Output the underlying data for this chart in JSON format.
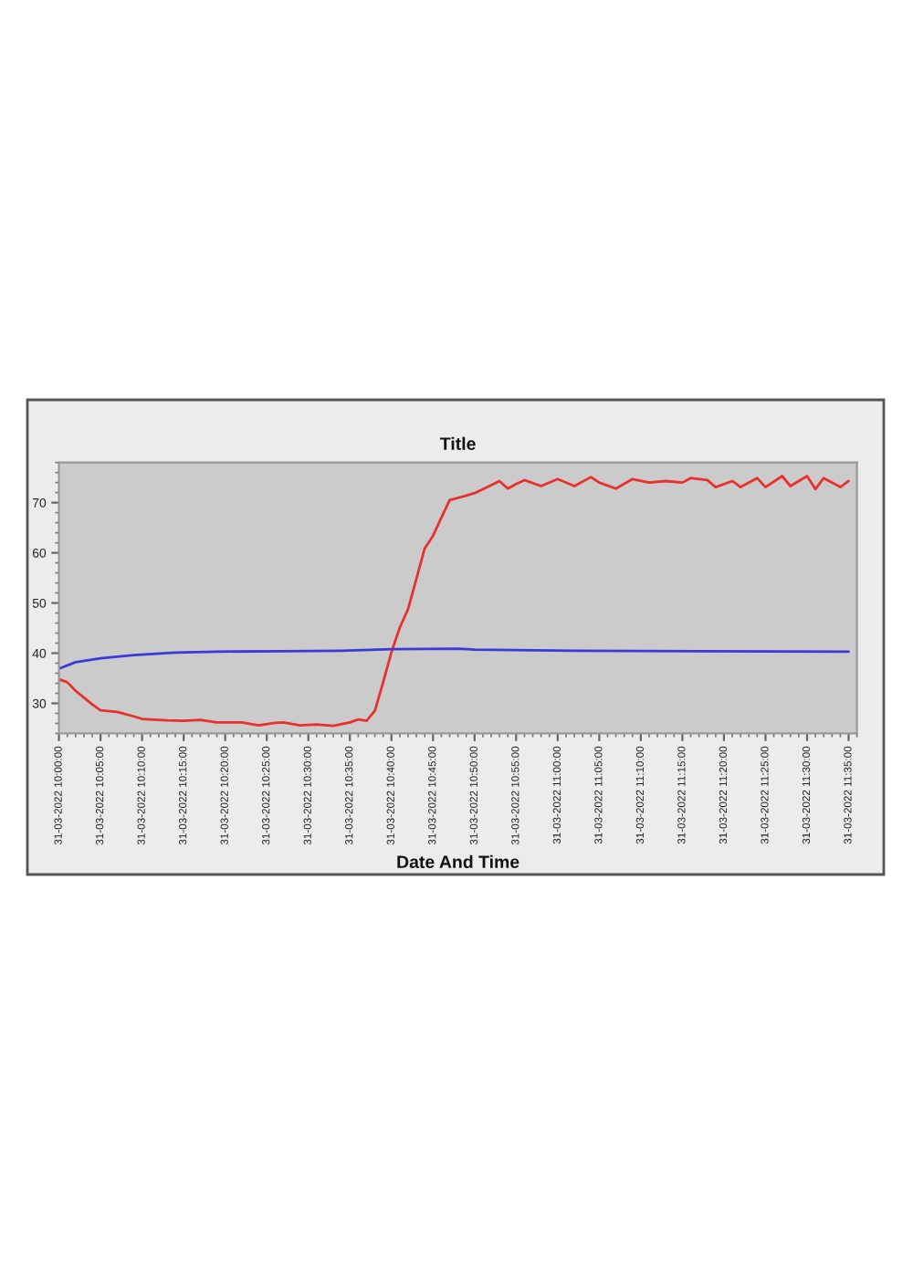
{
  "chart_data": {
    "type": "line",
    "title": "Title",
    "xlabel": "Date And Time",
    "series": [
      {
        "color": "#e8302c",
        "x": [
          "2022-03-31T10:00",
          "2022-03-31T10:01",
          "2022-03-31T10:02",
          "2022-03-31T10:04",
          "2022-03-31T10:05",
          "2022-03-31T10:07",
          "2022-03-31T10:09",
          "2022-03-31T10:10",
          "2022-03-31T10:13",
          "2022-03-31T10:15",
          "2022-03-31T10:17",
          "2022-03-31T10:19",
          "2022-03-31T10:22",
          "2022-03-31T10:24",
          "2022-03-31T10:26",
          "2022-03-31T10:27",
          "2022-03-31T10:29",
          "2022-03-31T10:31",
          "2022-03-31T10:33",
          "2022-03-31T10:35",
          "2022-03-31T10:36",
          "2022-03-31T10:37",
          "2022-03-31T10:38",
          "2022-03-31T10:39",
          "2022-03-31T10:40",
          "2022-03-31T10:41",
          "2022-03-31T10:42",
          "2022-03-31T10:43",
          "2022-03-31T10:44",
          "2022-03-31T10:45",
          "2022-03-31T10:46",
          "2022-03-31T10:47",
          "2022-03-31T10:49",
          "2022-03-31T10:50",
          "2022-03-31T10:52",
          "2022-03-31T10:53",
          "2022-03-31T10:54",
          "2022-03-31T10:55",
          "2022-03-31T10:56",
          "2022-03-31T10:58",
          "2022-03-31T11:00",
          "2022-03-31T11:02",
          "2022-03-31T11:04",
          "2022-03-31T11:05",
          "2022-03-31T11:07",
          "2022-03-31T11:09",
          "2022-03-31T11:11",
          "2022-03-31T11:13",
          "2022-03-31T11:15",
          "2022-03-31T11:16",
          "2022-03-31T11:18",
          "2022-03-31T11:19",
          "2022-03-31T11:21",
          "2022-03-31T11:22",
          "2022-03-31T11:24",
          "2022-03-31T11:25",
          "2022-03-31T11:27",
          "2022-03-31T11:28",
          "2022-03-31T11:30",
          "2022-03-31T11:31",
          "2022-03-31T11:32",
          "2022-03-31T11:34",
          "2022-03-31T11:35"
        ],
        "values": [
          34.8,
          34.2,
          32.5,
          29.8,
          28.6,
          28.3,
          27.4,
          26.9,
          26.6,
          26.5,
          26.7,
          26.2,
          26.2,
          25.6,
          26.1,
          26.2,
          25.6,
          25.8,
          25.5,
          26.2,
          26.8,
          26.5,
          28.5,
          34.2,
          40.2,
          45.1,
          48.8,
          54.8,
          60.9,
          63.4,
          67.0,
          70.5,
          71.4,
          71.9,
          73.5,
          74.3,
          72.8,
          73.7,
          74.5,
          73.3,
          74.7,
          73.3,
          75.1,
          74.0,
          72.8,
          74.7,
          74.0,
          74.3,
          74.0,
          74.9,
          74.5,
          73.1,
          74.3,
          73.1,
          74.9,
          73.1,
          75.3,
          73.3,
          75.3,
          72.7,
          74.9,
          73.1,
          74.3
        ]
      },
      {
        "color": "#3a3ad8",
        "x": [
          "2022-03-31T10:00",
          "2022-03-31T10:02",
          "2022-03-31T10:05",
          "2022-03-31T10:09",
          "2022-03-31T10:14",
          "2022-03-31T10:19",
          "2022-03-31T10:27",
          "2022-03-31T10:34",
          "2022-03-31T10:40",
          "2022-03-31T10:48",
          "2022-03-31T10:50",
          "2022-03-31T11:02",
          "2022-03-31T11:17",
          "2022-03-31T11:35"
        ],
        "values": [
          36.9,
          38.2,
          39.0,
          39.6,
          40.1,
          40.3,
          40.4,
          40.5,
          40.8,
          40.9,
          40.7,
          40.5,
          40.4,
          40.3
        ]
      }
    ],
    "xlim": [
      "2022-03-31T10:00",
      "2022-03-31T11:36"
    ],
    "xticks": [
      {
        "value": "2022-03-31T10:00",
        "label": "31-03-2022 10:00:00"
      },
      {
        "value": "2022-03-31T10:05",
        "label": "31-03-2022 10:05:00"
      },
      {
        "value": "2022-03-31T10:10",
        "label": "31-03-2022 10:10:00"
      },
      {
        "value": "2022-03-31T10:15",
        "label": "31-03-2022 10:15:00"
      },
      {
        "value": "2022-03-31T10:20",
        "label": "31-03-2022 10:20:00"
      },
      {
        "value": "2022-03-31T10:25",
        "label": "31-03-2022 10:25:00"
      },
      {
        "value": "2022-03-31T10:30",
        "label": "31-03-2022 10:30:00"
      },
      {
        "value": "2022-03-31T10:35",
        "label": "31-03-2022 10:35:00"
      },
      {
        "value": "2022-03-31T10:40",
        "label": "31-03-2022 10:40:00"
      },
      {
        "value": "2022-03-31T10:45",
        "label": "31-03-2022 10:45:00"
      },
      {
        "value": "2022-03-31T10:50",
        "label": "31-03-2022 10:50:00"
      },
      {
        "value": "2022-03-31T10:55",
        "label": "31-03-2022 10:55:00"
      },
      {
        "value": "2022-03-31T11:00",
        "label": "31-03-2022 11:00:00"
      },
      {
        "value": "2022-03-31T11:05",
        "label": "31-03-2022 11:05:00"
      },
      {
        "value": "2022-03-31T11:10",
        "label": "31-03-2022 11:10:00"
      },
      {
        "value": "2022-03-31T11:15",
        "label": "31-03-2022 11:15:00"
      },
      {
        "value": "2022-03-31T11:20",
        "label": "31-03-2022 11:20:00"
      },
      {
        "value": "2022-03-31T11:25",
        "label": "31-03-2022 11:25:00"
      },
      {
        "value": "2022-03-31T11:30",
        "label": "31-03-2022 11:30:00"
      },
      {
        "value": "2022-03-31T11:35",
        "label": "31-03-2022 11:35:00"
      }
    ],
    "ylim": [
      24,
      78
    ],
    "yticks": [
      30,
      40,
      50,
      60,
      70
    ]
  }
}
